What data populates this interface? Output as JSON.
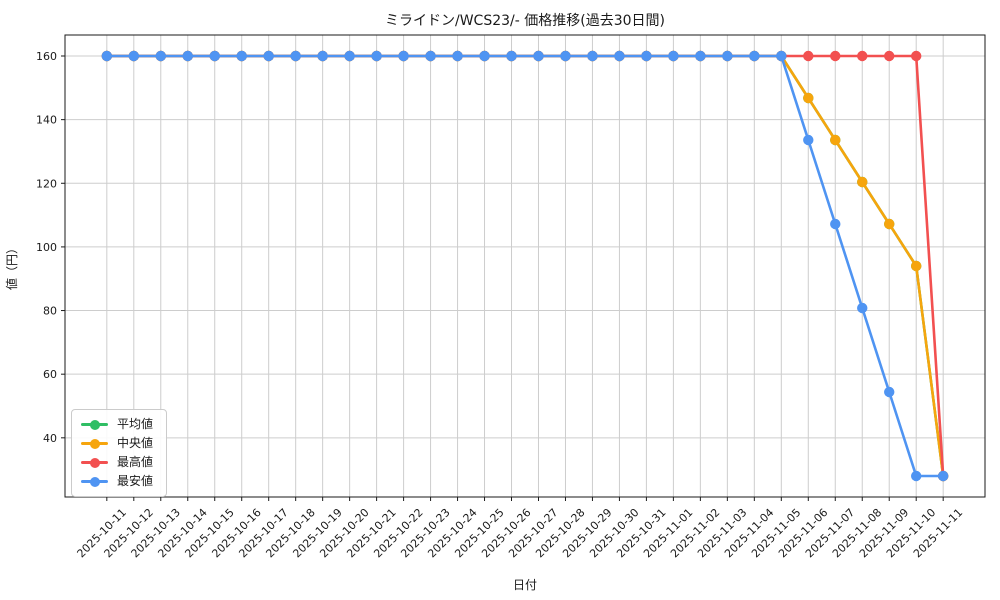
{
  "figure": {
    "title": "ミライドン/WCS23/- 価格推移(過去30日間)",
    "xlabel": "日付",
    "ylabel": "値（円）"
  },
  "chart_data": {
    "type": "line",
    "title": "ミライドン/WCS23/- 価格推移(過去30日間)",
    "xlabel": "日付",
    "ylabel": "値（円）",
    "grid": true,
    "legend_position": "lower left",
    "ylim": [
      21.4,
      166.6
    ],
    "yticks": [
      40,
      60,
      80,
      100,
      120,
      140,
      160
    ],
    "x": [
      "2025-10-11",
      "2025-10-12",
      "2025-10-13",
      "2025-10-14",
      "2025-10-15",
      "2025-10-16",
      "2025-10-17",
      "2025-10-18",
      "2025-10-19",
      "2025-10-20",
      "2025-10-21",
      "2025-10-22",
      "2025-10-23",
      "2025-10-24",
      "2025-10-25",
      "2025-10-26",
      "2025-10-27",
      "2025-10-28",
      "2025-10-29",
      "2025-10-30",
      "2025-10-31",
      "2025-11-01",
      "2025-11-02",
      "2025-11-03",
      "2025-11-04",
      "2025-11-05",
      "2025-11-06",
      "2025-11-07",
      "2025-11-08",
      "2025-11-09",
      "2025-11-10",
      "2025-11-11"
    ],
    "series": [
      {
        "name": "平均値",
        "color": "#2fbe64",
        "values": [
          160,
          160,
          160,
          160,
          160,
          160,
          160,
          160,
          160,
          160,
          160,
          160,
          160,
          160,
          160,
          160,
          160,
          160,
          160,
          160,
          160,
          160,
          160,
          160,
          160,
          160,
          146.8,
          133.6,
          120.4,
          107.2,
          94,
          28
        ]
      },
      {
        "name": "中央値",
        "color": "#f6a50d",
        "values": [
          160,
          160,
          160,
          160,
          160,
          160,
          160,
          160,
          160,
          160,
          160,
          160,
          160,
          160,
          160,
          160,
          160,
          160,
          160,
          160,
          160,
          160,
          160,
          160,
          160,
          160,
          146.8,
          133.6,
          120.4,
          107.2,
          94,
          28
        ]
      },
      {
        "name": "最高値",
        "color": "#f25050",
        "values": [
          160,
          160,
          160,
          160,
          160,
          160,
          160,
          160,
          160,
          160,
          160,
          160,
          160,
          160,
          160,
          160,
          160,
          160,
          160,
          160,
          160,
          160,
          160,
          160,
          160,
          160,
          160,
          160,
          160,
          160,
          160,
          28
        ]
      },
      {
        "name": "最安値",
        "color": "#4f94f2",
        "values": [
          160,
          160,
          160,
          160,
          160,
          160,
          160,
          160,
          160,
          160,
          160,
          160,
          160,
          160,
          160,
          160,
          160,
          160,
          160,
          160,
          160,
          160,
          160,
          160,
          160,
          160,
          133.6,
          107.2,
          80.8,
          54.4,
          28,
          28
        ]
      }
    ]
  }
}
